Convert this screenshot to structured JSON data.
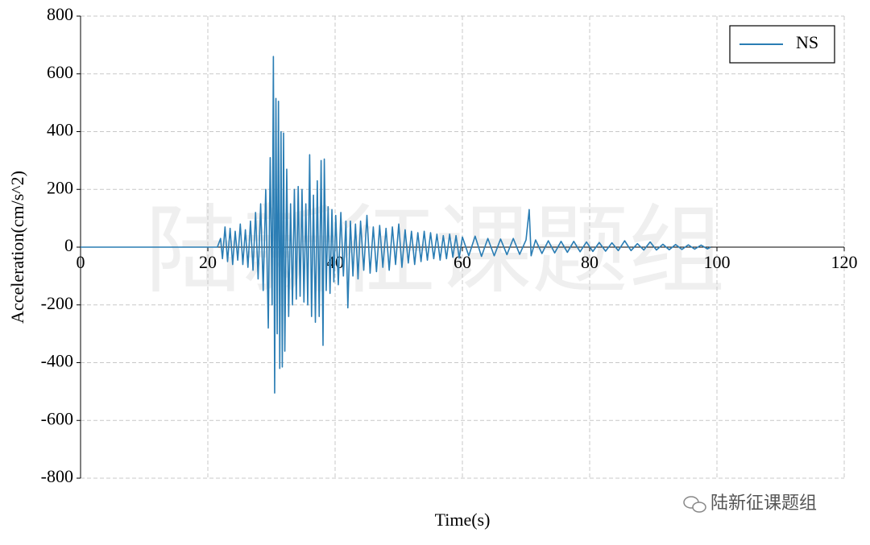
{
  "chart_data": {
    "type": "line",
    "xlabel": "Time(s)",
    "ylabel": "Acceleration(cm/s^2)",
    "watermark": "陆新征课题组",
    "source_label": "陆新征课题组",
    "xlim": [
      0,
      120
    ],
    "xticks": [
      0,
      20,
      40,
      60,
      80,
      100,
      120
    ],
    "ylim": [
      -800,
      800
    ],
    "yticks": [
      -800,
      -600,
      -400,
      -200,
      0,
      200,
      400,
      600,
      800
    ],
    "grid": true,
    "legend": "upper right",
    "x": [
      0,
      21.5,
      22,
      22.3,
      22.7,
      23.1,
      23.5,
      23.9,
      24.3,
      24.7,
      25.1,
      25.5,
      25.9,
      26.3,
      26.7,
      27.1,
      27.5,
      27.9,
      28.3,
      28.7,
      29.1,
      29.5,
      29.8,
      30.1,
      30.3,
      30.5,
      30.7,
      30.9,
      31.1,
      31.3,
      31.5,
      31.7,
      31.9,
      32.1,
      32.4,
      32.7,
      33.0,
      33.3,
      33.6,
      33.9,
      34.2,
      34.5,
      34.8,
      35.1,
      35.4,
      35.7,
      36.0,
      36.3,
      36.6,
      36.9,
      37.2,
      37.5,
      37.8,
      38.1,
      38.3,
      38.6,
      38.9,
      39.2,
      39.5,
      39.8,
      40.1,
      40.5,
      40.9,
      41.3,
      41.7,
      42.0,
      42.4,
      42.8,
      43.2,
      43.6,
      44.0,
      44.5,
      45.0,
      45.5,
      46.0,
      46.5,
      47.0,
      47.5,
      48.0,
      48.5,
      49.0,
      49.5,
      50.0,
      50.5,
      51.0,
      51.5,
      52.0,
      52.5,
      53.0,
      53.5,
      54.0,
      54.5,
      55.0,
      55.5,
      56.0,
      56.5,
      57.0,
      57.5,
      58.0,
      58.5,
      59.0,
      59.5,
      60.0,
      61,
      62,
      63,
      64,
      65,
      66,
      67,
      68,
      69,
      70,
      70.5,
      70.8,
      71.5,
      72.5,
      73.5,
      74.5,
      75.5,
      76.5,
      77.5,
      78.5,
      79.5,
      80.5,
      81.5,
      82.5,
      83.5,
      84.5,
      85.5,
      86.5,
      87.5,
      88.5,
      89.5,
      90.5,
      91.5,
      92.5,
      93.5,
      94.5,
      95.5,
      96.5,
      97.5,
      98.5,
      99
    ],
    "series": [
      {
        "name": "NS",
        "color": "#2a7db4",
        "values": [
          0,
          0,
          30,
          -40,
          70,
          -50,
          65,
          -60,
          55,
          -45,
          80,
          -60,
          60,
          -70,
          90,
          -80,
          120,
          -110,
          150,
          -150,
          200,
          -280,
          310,
          -200,
          660,
          -505,
          515,
          -300,
          505,
          -420,
          400,
          -415,
          395,
          -360,
          270,
          -240,
          150,
          -200,
          200,
          -180,
          210,
          -170,
          200,
          -190,
          150,
          -200,
          320,
          -240,
          180,
          -260,
          230,
          -240,
          300,
          -340,
          305,
          -150,
          140,
          -160,
          130,
          -120,
          110,
          -130,
          120,
          -100,
          90,
          -210,
          90,
          -100,
          80,
          -110,
          90,
          -80,
          110,
          -90,
          70,
          -85,
          75,
          -70,
          65,
          -80,
          70,
          -60,
          80,
          -70,
          60,
          -55,
          55,
          -60,
          50,
          -50,
          55,
          -45,
          50,
          -40,
          45,
          -45,
          40,
          -40,
          45,
          -35,
          40,
          -38,
          35,
          -30,
          38,
          -32,
          30,
          -30,
          28,
          -26,
          30,
          -25,
          25,
          130,
          -30,
          25,
          -22,
          22,
          -20,
          20,
          -18,
          20,
          -16,
          18,
          -15,
          16,
          -14,
          15,
          -12,
          22,
          -12,
          12,
          -10,
          18,
          -10,
          10,
          -9,
          9,
          -8,
          8,
          -7,
          7,
          -6,
          0
        ]
      }
    ]
  }
}
